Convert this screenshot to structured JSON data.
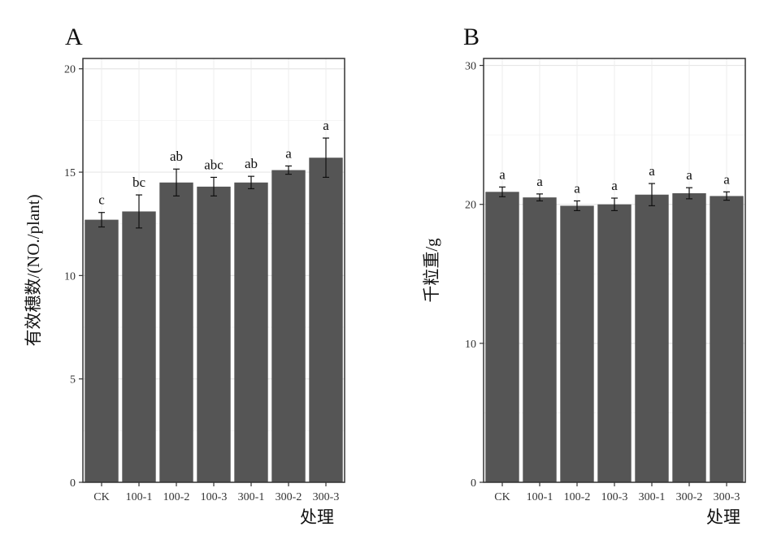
{
  "chart_data": [
    {
      "type": "bar",
      "panel_label": "A",
      "categories": [
        "CK",
        "100-1",
        "100-2",
        "100-3",
        "300-1",
        "300-2",
        "300-3"
      ],
      "values": [
        12.7,
        13.1,
        14.5,
        14.3,
        14.5,
        15.1,
        15.7
      ],
      "error": [
        0.35,
        0.8,
        0.65,
        0.45,
        0.3,
        0.2,
        0.95
      ],
      "significance": [
        "c",
        "bc",
        "ab",
        "abc",
        "ab",
        "a",
        "a"
      ],
      "xlabel": "处理",
      "ylabel": "有效穗数/(NO./plant)",
      "ylim": [
        0,
        20.5
      ],
      "yticks": [
        0,
        5,
        10,
        15,
        20
      ],
      "bar_color": "#555555",
      "grid": true
    },
    {
      "type": "bar",
      "panel_label": "B",
      "categories": [
        "CK",
        "100-1",
        "100-2",
        "100-3",
        "300-1",
        "300-2",
        "300-3"
      ],
      "values": [
        20.9,
        20.5,
        19.9,
        20.0,
        20.7,
        20.8,
        20.6
      ],
      "error": [
        0.35,
        0.25,
        0.35,
        0.45,
        0.8,
        0.4,
        0.3
      ],
      "significance": [
        "a",
        "a",
        "a",
        "a",
        "a",
        "a",
        "a"
      ],
      "xlabel": "处理",
      "ylabel": "千粒重/g",
      "ylim": [
        0,
        30.5
      ],
      "yticks": [
        0,
        10,
        20,
        30
      ],
      "bar_color": "#555555",
      "grid": true
    }
  ]
}
